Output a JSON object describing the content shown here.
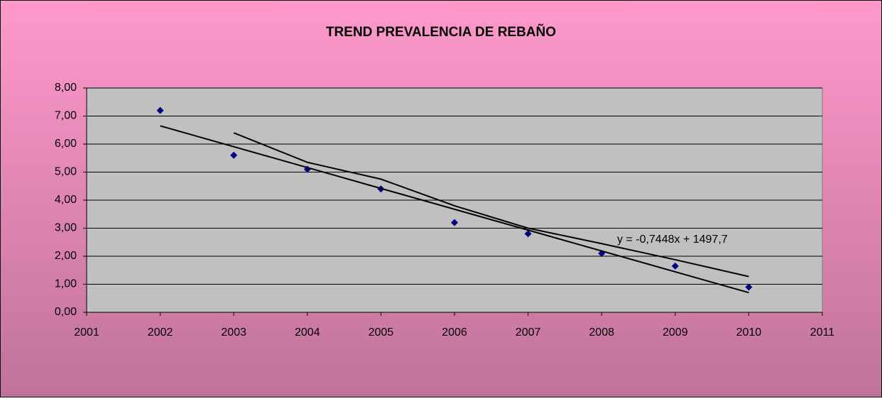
{
  "chart_data": {
    "type": "scatter",
    "title": "TREND PREVALENCIA DE REBAÑO",
    "annotation": "y = -0,7448x + 1497,7",
    "x": [
      2002,
      2003,
      2004,
      2005,
      2006,
      2007,
      2008,
      2009,
      2010
    ],
    "series": [
      {
        "color": "#000080",
        "marker": "diamond",
        "values": [
          7.2,
          5.6,
          5.1,
          4.4,
          3.2,
          2.8,
          2.1,
          1.65,
          0.9
        ]
      },
      {
        "color": "#000000",
        "marker": "none",
        "values": [
          null,
          6.4,
          5.35,
          4.75,
          3.8,
          3.0,
          2.45,
          1.875,
          1.275
        ]
      },
      {
        "color": "#000000",
        "marker": "none",
        "x": [
          2002,
          2010
        ],
        "values": [
          6.65,
          0.7
        ]
      }
    ],
    "xlim": [
      2001,
      2011
    ],
    "xticks": [
      2001,
      2002,
      2003,
      2004,
      2005,
      2006,
      2007,
      2008,
      2009,
      2010,
      2011
    ],
    "ylim": [
      0,
      8
    ],
    "yticks": [
      {
        "value": 0,
        "label": "0,00"
      },
      {
        "value": 1,
        "label": "1,00"
      },
      {
        "value": 2,
        "label": "2,00"
      },
      {
        "value": 3,
        "label": "3,00"
      },
      {
        "value": 4,
        "label": "4,00"
      },
      {
        "value": 5,
        "label": "5,00"
      },
      {
        "value": 6,
        "label": "6,00"
      },
      {
        "value": 7,
        "label": "7,00"
      },
      {
        "value": 8,
        "label": "8,00"
      }
    ],
    "grid": true
  }
}
